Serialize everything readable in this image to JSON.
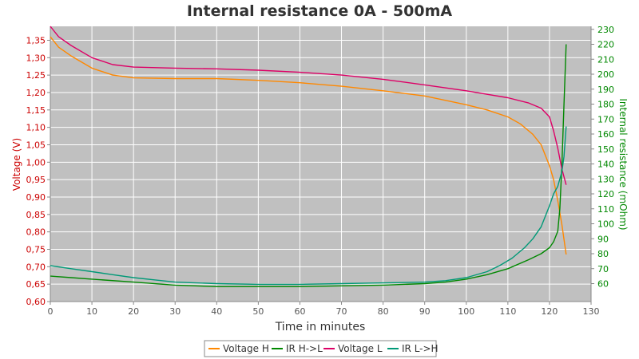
{
  "chart_data": {
    "type": "line",
    "title": "Internal resistance  0A - 500mA",
    "xlabel": "Time in minutes",
    "ylabel_left": "Voltage (V)",
    "ylabel_right": "Internal resistance (mOhm)",
    "xlim": [
      0,
      130
    ],
    "ylim_left": [
      0.6,
      1.39
    ],
    "ylim_right": [
      48,
      232
    ],
    "x_ticks": [
      0,
      10,
      20,
      30,
      40,
      50,
      60,
      70,
      80,
      90,
      100,
      110,
      120,
      130
    ],
    "y_left_ticks": [
      "0,60",
      "0,65",
      "0,70",
      "0,75",
      "0,80",
      "0,85",
      "0,90",
      "0,95",
      "1,00",
      "1,05",
      "1,10",
      "1,15",
      "1,20",
      "1,25",
      "1,30",
      "1,35"
    ],
    "y_right_ticks": [
      60,
      70,
      80,
      90,
      100,
      110,
      120,
      130,
      140,
      150,
      160,
      170,
      180,
      190,
      200,
      210,
      220,
      230
    ],
    "grid": true,
    "legend_position": "bottom-center",
    "colors": {
      "plot_bg": "#c0c0c0",
      "grid": "#ffffff",
      "left_axis": "#cc0000",
      "right_axis": "#008800"
    },
    "series": [
      {
        "name": "Voltage H",
        "axis": "left",
        "color": "#ff8800",
        "x": [
          0,
          2,
          5,
          10,
          15,
          20,
          30,
          40,
          50,
          60,
          70,
          80,
          90,
          100,
          105,
          110,
          113,
          116,
          118,
          120,
          121,
          122,
          123,
          124
        ],
        "y": [
          1.36,
          1.33,
          1.305,
          1.27,
          1.25,
          1.242,
          1.24,
          1.24,
          1.235,
          1.228,
          1.218,
          1.205,
          1.19,
          1.165,
          1.15,
          1.13,
          1.11,
          1.08,
          1.05,
          0.99,
          0.95,
          0.89,
          0.82,
          0.735
        ]
      },
      {
        "name": "IR H->L",
        "axis": "right",
        "color": "#008800",
        "x": [
          0,
          5,
          10,
          20,
          30,
          40,
          50,
          60,
          70,
          80,
          90,
          95,
          100,
          105,
          110,
          115,
          118,
          120,
          121,
          122,
          122.5,
          123,
          123.5,
          124
        ],
        "y": [
          65,
          64,
          63,
          61,
          59,
          58,
          58,
          58,
          58.5,
          59,
          60,
          61,
          63,
          66,
          70,
          76,
          80,
          84,
          88,
          95,
          110,
          140,
          180,
          220
        ]
      },
      {
        "name": "Voltage L",
        "axis": "left",
        "color": "#dd0066",
        "x": [
          0,
          2,
          5,
          10,
          15,
          20,
          30,
          40,
          50,
          60,
          70,
          80,
          90,
          100,
          105,
          110,
          115,
          118,
          120,
          121,
          122,
          123,
          124
        ],
        "y": [
          1.39,
          1.36,
          1.335,
          1.3,
          1.28,
          1.273,
          1.27,
          1.268,
          1.264,
          1.258,
          1.25,
          1.238,
          1.222,
          1.205,
          1.195,
          1.185,
          1.17,
          1.155,
          1.13,
          1.09,
          1.04,
          0.98,
          0.935
        ]
      },
      {
        "name": "IR L->H",
        "axis": "right",
        "color": "#009977",
        "x": [
          0,
          5,
          10,
          15,
          20,
          25,
          30,
          40,
          50,
          60,
          70,
          80,
          90,
          95,
          100,
          105,
          108,
          111,
          114,
          116,
          118,
          119,
          120,
          121,
          122,
          123,
          123.5,
          124
        ],
        "y": [
          72,
          70,
          68,
          66,
          64,
          62.5,
          61,
          60,
          59.5,
          59.5,
          60,
          60.5,
          61,
          62,
          64,
          68,
          72,
          77,
          84,
          90,
          98,
          105,
          112,
          120,
          125,
          135,
          145,
          165
        ]
      }
    ]
  }
}
